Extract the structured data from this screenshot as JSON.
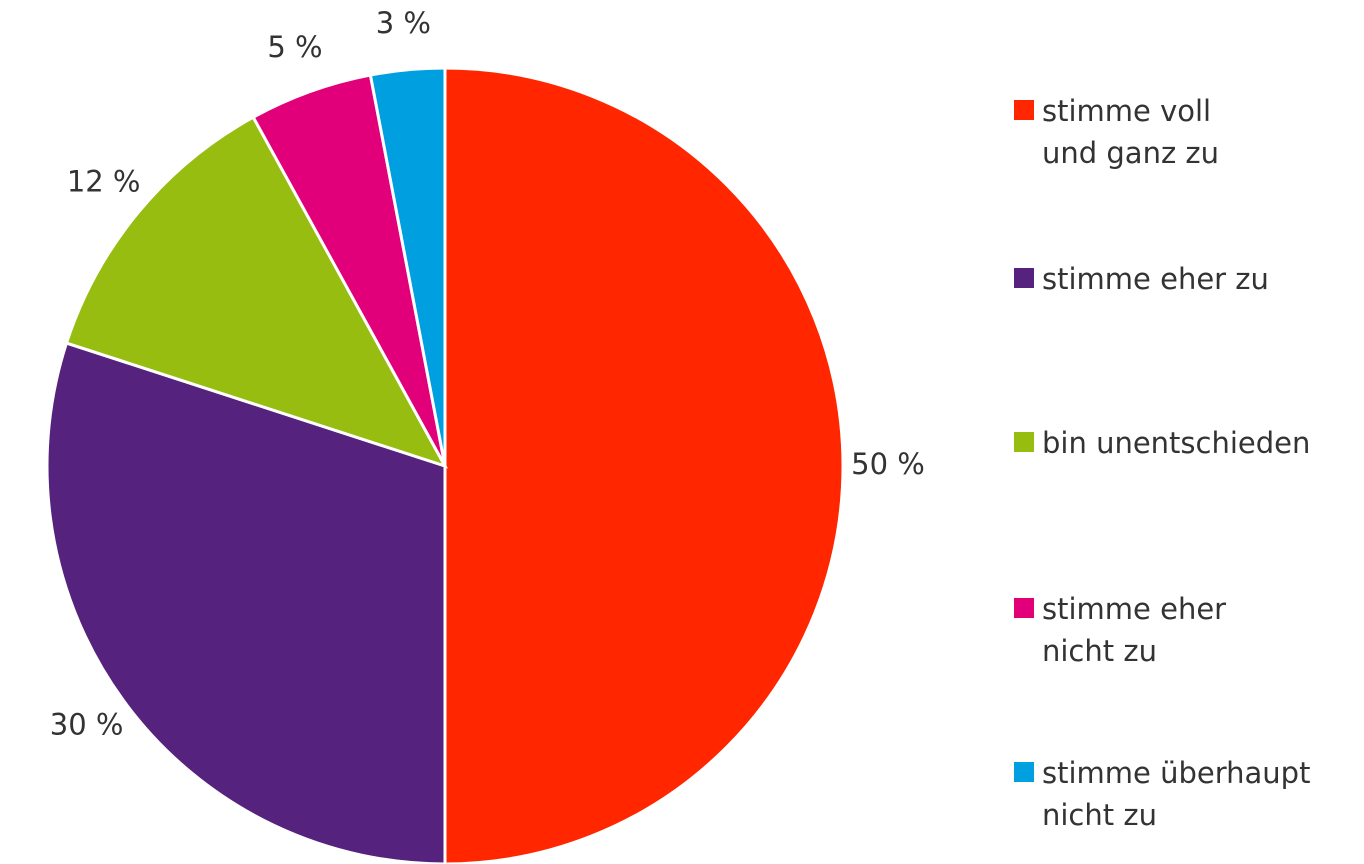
{
  "chart_data": {
    "type": "pie",
    "categories": [
      "stimme voll\nund ganz zu",
      "stimme eher zu",
      "bin unentschieden",
      "stimme eher\nnicht zu",
      "stimme überhaupt\nnicht zu"
    ],
    "values": [
      50,
      30,
      12,
      5,
      3
    ],
    "value_labels": [
      "50 %",
      "30 %",
      "12 %",
      "5 %",
      "3 %"
    ],
    "colors": [
      "#ff2600",
      "#55237d",
      "#97bd10",
      "#e2007a",
      "#009fe0"
    ],
    "legend": "right"
  }
}
